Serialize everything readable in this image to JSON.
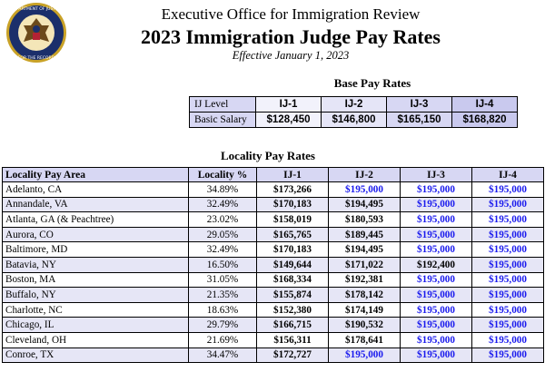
{
  "header": {
    "office": "Executive Office for Immigration Review",
    "title": "2023 Immigration Judge Pay Rates",
    "effective": "Effective January 1, 2023"
  },
  "seal": {
    "text_top": "DEPARTMENT OF JUSTICE",
    "text_bottom": "FOR THE RECORD"
  },
  "base": {
    "title": "Base Pay Rates",
    "level_label": "IJ Level",
    "salary_label": "Basic Salary",
    "levels": [
      "IJ-1",
      "IJ-2",
      "IJ-3",
      "IJ-4"
    ],
    "salaries": [
      "$128,450",
      "$146,800",
      "$165,150",
      "$168,820"
    ]
  },
  "locality": {
    "title": "Locality Pay Rates",
    "headers": [
      "Locality Pay Area",
      "Locality %",
      "IJ-1",
      "IJ-2",
      "IJ-3",
      "IJ-4"
    ],
    "rows": [
      [
        "Adelanto, CA",
        "34.89%",
        "$173,266",
        "$195,000",
        "$195,000",
        "$195,000"
      ],
      [
        "Annandale, VA",
        "32.49%",
        "$170,183",
        "$194,495",
        "$195,000",
        "$195,000"
      ],
      [
        "Atlanta, GA (& Peachtree)",
        "23.02%",
        "$158,019",
        "$180,593",
        "$195,000",
        "$195,000"
      ],
      [
        "Aurora, CO",
        "29.05%",
        "$165,765",
        "$189,445",
        "$195,000",
        "$195,000"
      ],
      [
        "Baltimore, MD",
        "32.49%",
        "$170,183",
        "$194,495",
        "$195,000",
        "$195,000"
      ],
      [
        "Batavia, NY",
        "16.50%",
        "$149,644",
        "$171,022",
        "$192,400",
        "$195,000"
      ],
      [
        "Boston, MA",
        "31.05%",
        "$168,334",
        "$192,381",
        "$195,000",
        "$195,000"
      ],
      [
        "Buffalo, NY",
        "21.35%",
        "$155,874",
        "$178,142",
        "$195,000",
        "$195,000"
      ],
      [
        "Charlotte, NC",
        "18.63%",
        "$152,380",
        "$174,149",
        "$195,000",
        "$195,000"
      ],
      [
        "Chicago, IL",
        "29.79%",
        "$166,715",
        "$190,532",
        "$195,000",
        "$195,000"
      ],
      [
        "Cleveland, OH",
        "21.69%",
        "$156,311",
        "$178,641",
        "$195,000",
        "$195,000"
      ],
      [
        "Conroe, TX",
        "34.47%",
        "$172,727",
        "$195,000",
        "$195,000",
        "$195,000"
      ]
    ],
    "cap_value": "$195,000"
  },
  "colors": {
    "cap_text": "#1a1aee",
    "header_bg": "#d7d7f3",
    "row_alt_bg": "#e6e6f6"
  }
}
